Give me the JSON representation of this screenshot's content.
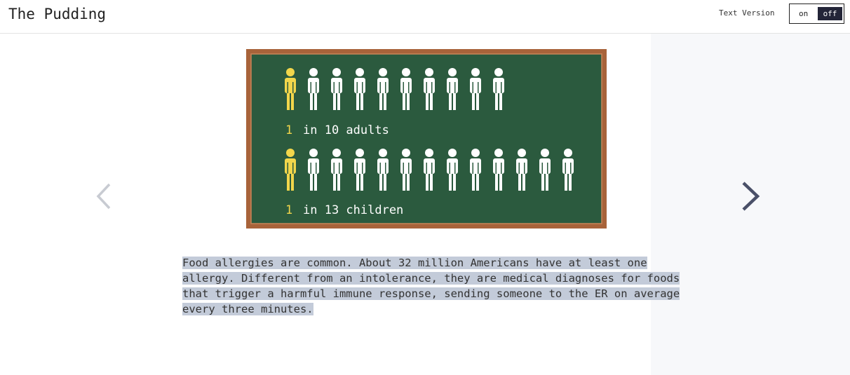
{
  "header": {
    "title": "The Pudding",
    "toggle_label": "Text Version",
    "toggle_on": "on",
    "toggle_off": "off"
  },
  "board": {
    "rows": [
      {
        "highlight": "1",
        "text": "in 10 adults"
      },
      {
        "highlight": "1",
        "text": "in 13 children"
      }
    ]
  },
  "paragraph": "Food allergies are common. About 32 million Americans have at least one allergy. Different from an intolerance, they are medical diagnoses for foods that trigger a harmful immune response, sending someone to the ER on average every three minutes."
}
